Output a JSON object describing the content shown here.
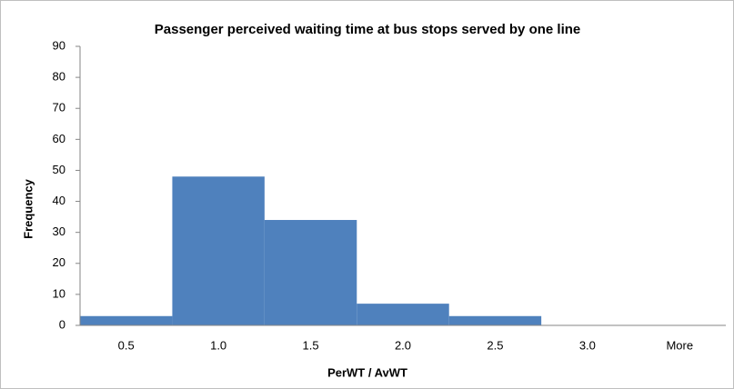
{
  "chart_data": {
    "type": "bar",
    "title": "Passenger perceived waiting time at bus stops served by one line",
    "x_label": "PerWT / AvWT",
    "y_label": "Frequency",
    "categories": [
      "0.5",
      "1.0",
      "1.5",
      "2.0",
      "2.5",
      "3.0",
      "More"
    ],
    "values": [
      3,
      48,
      34,
      7,
      3,
      0,
      0
    ],
    "color": "#4f81bd",
    "ylim": [
      0,
      90
    ],
    "yticks": [
      0,
      10,
      20,
      30,
      40,
      50,
      60,
      70,
      80,
      90
    ],
    "grid": false
  }
}
